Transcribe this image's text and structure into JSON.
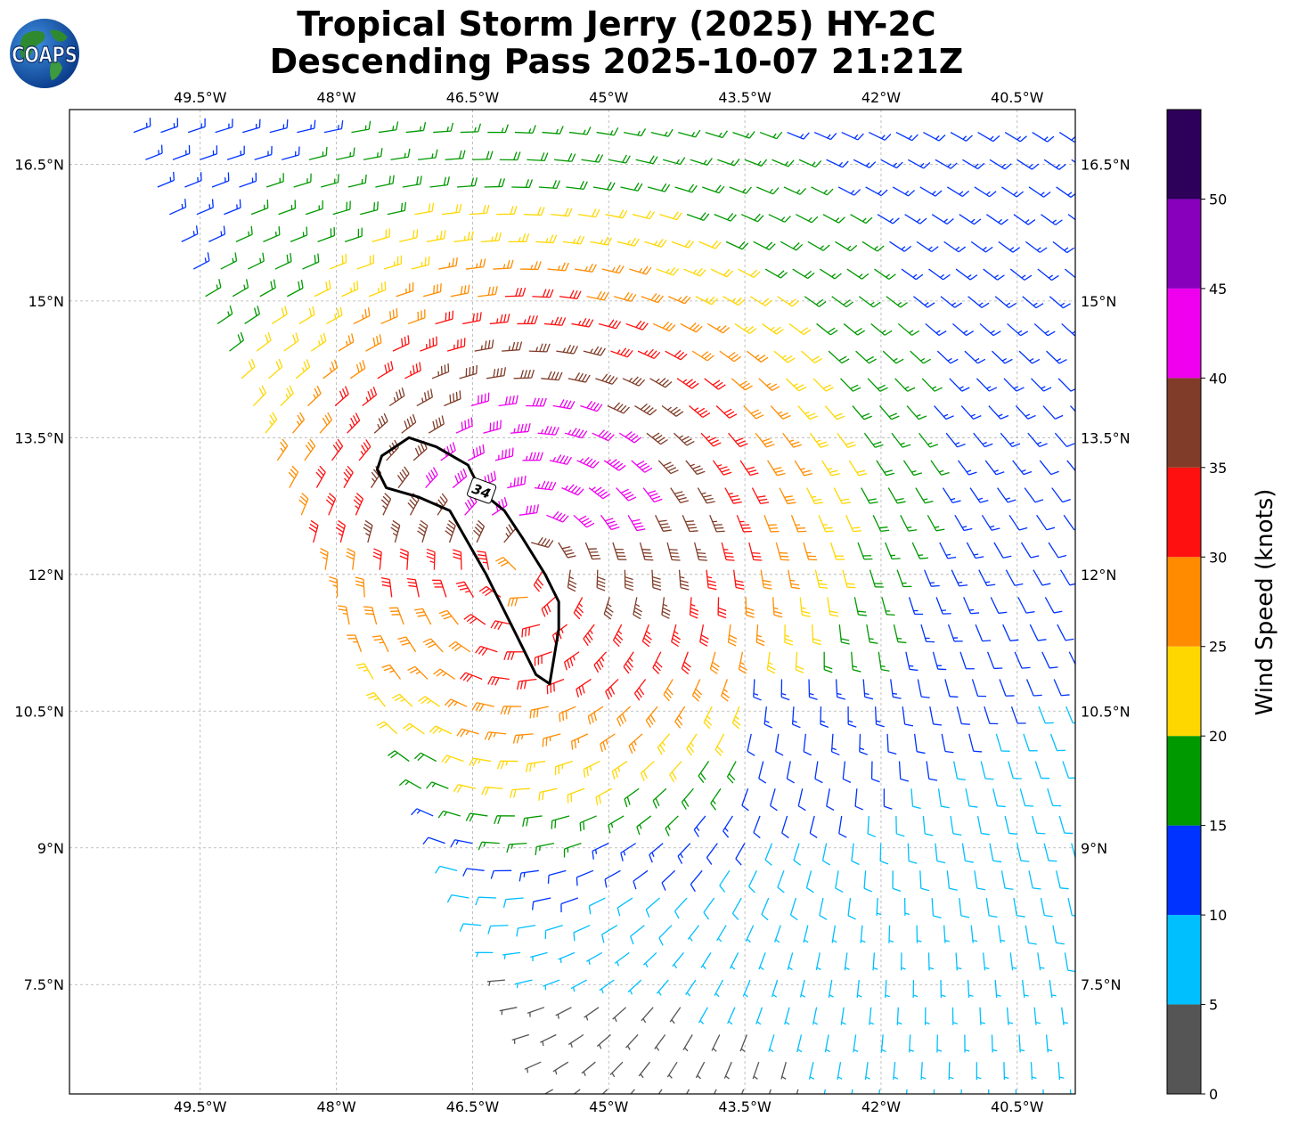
{
  "header": {
    "title_line1": "Tropical Storm Jerry (2025) HY-2C",
    "title_line2": "Descending Pass 2025-10-07 21:21Z",
    "logo_text": "COAPS"
  },
  "map": {
    "lon_range": [
      -50.94,
      -39.86
    ],
    "lat_range": [
      6.3,
      17.1
    ],
    "lon_ticks": [
      {
        "value": -49.5,
        "label": "49.5°W"
      },
      {
        "value": -48,
        "label": "48°W"
      },
      {
        "value": -46.5,
        "label": "46.5°W"
      },
      {
        "value": -45,
        "label": "45°W"
      },
      {
        "value": -43.5,
        "label": "43.5°W"
      },
      {
        "value": -42,
        "label": "42°W"
      },
      {
        "value": -40.5,
        "label": "40.5°W"
      }
    ],
    "lat_ticks": [
      {
        "value": 16.5,
        "label": "16.5°N"
      },
      {
        "value": 15,
        "label": "15°N"
      },
      {
        "value": 13.5,
        "label": "13.5°N"
      },
      {
        "value": 12,
        "label": "12°N"
      },
      {
        "value": 10.5,
        "label": "10.5°N"
      },
      {
        "value": 9,
        "label": "9°N"
      },
      {
        "value": 7.5,
        "label": "7.5°N"
      }
    ],
    "grid": true,
    "storm_center": {
      "lon": -45.9,
      "lat": 12.2
    },
    "contour_34kt": {
      "label": "34",
      "points": [
        [
          -47.5,
          13.3
        ],
        [
          -47.2,
          13.5
        ],
        [
          -46.9,
          13.4
        ],
        [
          -46.55,
          13.2
        ],
        [
          -46.4,
          12.9
        ],
        [
          -46.15,
          12.7
        ],
        [
          -45.95,
          12.4
        ],
        [
          -45.7,
          12.0
        ],
        [
          -45.55,
          11.7
        ],
        [
          -45.55,
          11.4
        ],
        [
          -45.6,
          11.1
        ],
        [
          -45.65,
          10.8
        ],
        [
          -45.8,
          10.9
        ],
        [
          -46.0,
          11.3
        ],
        [
          -46.2,
          11.7
        ],
        [
          -46.35,
          12.0
        ],
        [
          -46.55,
          12.35
        ],
        [
          -46.75,
          12.7
        ],
        [
          -47.1,
          12.85
        ],
        [
          -47.45,
          12.95
        ],
        [
          -47.55,
          13.15
        ]
      ]
    }
  },
  "colorbar": {
    "label": "Wind Speed (knots)",
    "ticks": [
      "0",
      "5",
      "10",
      "15",
      "20",
      "25",
      "30",
      "35",
      "40",
      "45",
      "50"
    ],
    "bins": [
      {
        "min": 0,
        "max": 5,
        "color": "#555555"
      },
      {
        "min": 5,
        "max": 10,
        "color": "#00bfff"
      },
      {
        "min": 10,
        "max": 15,
        "color": "#0033ff"
      },
      {
        "min": 15,
        "max": 20,
        "color": "#009900"
      },
      {
        "min": 20,
        "max": 25,
        "color": "#ffd700"
      },
      {
        "min": 25,
        "max": 30,
        "color": "#ff8c00"
      },
      {
        "min": 30,
        "max": 35,
        "color": "#ff1010"
      },
      {
        "min": 35,
        "max": 40,
        "color": "#803c28"
      },
      {
        "min": 40,
        "max": 45,
        "color": "#ee00ee"
      },
      {
        "min": 45,
        "max": 50,
        "color": "#8800bb"
      },
      {
        "min": 50,
        "max": 55,
        "color": "#2d005a"
      }
    ]
  }
}
